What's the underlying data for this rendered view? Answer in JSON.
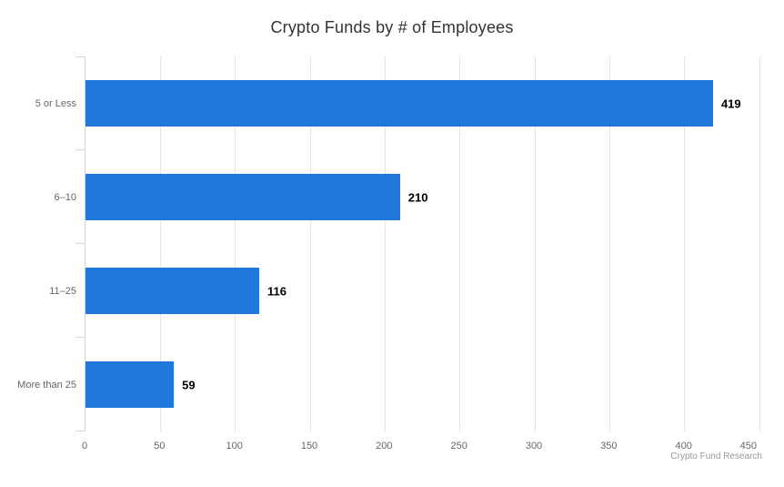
{
  "chart_data": {
    "type": "bar",
    "title": "Crypto Funds by # of Employees",
    "categories": [
      "5 or Less",
      "6–10",
      "11–25",
      "More than 25"
    ],
    "values": [
      419,
      210,
      116,
      59
    ],
    "xlabel": "",
    "ylabel": "",
    "xlim": [
      0,
      450
    ],
    "x_ticks": [
      0,
      50,
      100,
      150,
      200,
      250,
      300,
      350,
      400,
      450
    ],
    "grid": true,
    "legend_visible": false,
    "orientation": "horizontal",
    "bar_color": "#2277dd",
    "credits": "Crypto Fund Research"
  },
  "colors": {
    "background": "#ffffff",
    "title": "#333333",
    "axis-label": "#666666",
    "category-label": "#666666",
    "data-label": "#000000",
    "grid-line": "#e6e6e6",
    "axis-line": "#ccd6eb",
    "credits": "#999999",
    "bar": "#2277dd"
  }
}
